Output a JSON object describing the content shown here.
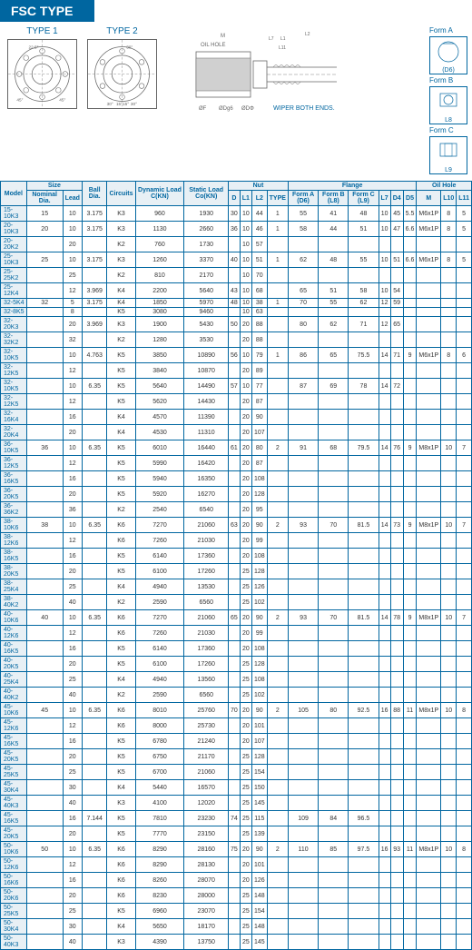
{
  "title": "FSC TYPE",
  "type1_label": "TYPE 1",
  "type2_label": "TYPE 2",
  "wiper_note": "WIPER BOTH ENDS.",
  "forms": [
    "Form A",
    "Form B",
    "Form C"
  ],
  "form_sublabels": [
    "(D6)",
    "L8",
    "L9"
  ],
  "diagram_labels": [
    "M",
    "OIL HOLE",
    "L7",
    "L1",
    "L11",
    "L2",
    "ØF",
    "ØDg6",
    "ØDΦ"
  ],
  "headers_top": [
    "Model",
    "Size",
    "Ball Dia.",
    "Circuits",
    "Dynamic Load C(KN)",
    "Static Load Co(KN)",
    "Nut",
    "Flange",
    "Oil Hole"
  ],
  "headers_size": [
    "Nominal Dia.",
    "Lead"
  ],
  "headers_nut": [
    "D",
    "L1",
    "L2",
    "TYPE"
  ],
  "headers_flange": [
    "Form A (D6)",
    "Form B (L8)",
    "Form C (L9)",
    "L7",
    "D4",
    "D5"
  ],
  "headers_oil": [
    "M",
    "L10",
    "L11"
  ],
  "rows": [
    {
      "model": "15-10K3",
      "nd": "15",
      "lead": "10",
      "ball": "3.175",
      "circ": "K3",
      "dyn": "960",
      "stat": "1930",
      "d": "30",
      "l1": "10",
      "l2": "44",
      "type": "1",
      "fa": "55",
      "fb": "41",
      "fc": "48",
      "l7": "10",
      "d4": "45",
      "d5": "5.5",
      "m": "M6x1P",
      "l10": "8",
      "l11": "5"
    },
    {
      "model": "20-10K3",
      "nd": "20",
      "lead": "10",
      "ball": "3.175",
      "circ": "K3",
      "dyn": "1130",
      "stat": "2660",
      "d": "36",
      "l1": "10",
      "l2": "46",
      "type": "1",
      "fa": "58",
      "fb": "44",
      "fc": "51",
      "l7": "10",
      "d4": "47",
      "d5": "6.6",
      "m": "M6x1P",
      "l10": "8",
      "l11": "5"
    },
    {
      "model": "20-20K2",
      "nd": "",
      "lead": "20",
      "ball": "",
      "circ": "K2",
      "dyn": "760",
      "stat": "1730",
      "d": "",
      "l1": "10",
      "l2": "57",
      "type": "",
      "fa": "",
      "fb": "",
      "fc": "",
      "l7": "",
      "d4": "",
      "d5": "",
      "m": "",
      "l10": "",
      "l11": ""
    },
    {
      "model": "25-10K3",
      "nd": "25",
      "lead": "10",
      "ball": "3.175",
      "circ": "K3",
      "dyn": "1260",
      "stat": "3370",
      "d": "40",
      "l1": "10",
      "l2": "51",
      "type": "1",
      "fa": "62",
      "fb": "48",
      "fc": "55",
      "l7": "10",
      "d4": "51",
      "d5": "6.6",
      "m": "M6x1P",
      "l10": "8",
      "l11": "5"
    },
    {
      "model": "25-25K2",
      "nd": "",
      "lead": "25",
      "ball": "",
      "circ": "K2",
      "dyn": "810",
      "stat": "2170",
      "d": "",
      "l1": "10",
      "l2": "70",
      "type": "",
      "fa": "",
      "fb": "",
      "fc": "",
      "l7": "",
      "d4": "",
      "d5": "",
      "m": "",
      "l10": "",
      "l11": ""
    },
    {
      "model": "25-12K4",
      "nd": "",
      "lead": "12",
      "ball": "3.969",
      "circ": "K4",
      "dyn": "2200",
      "stat": "5640",
      "d": "43",
      "l1": "10",
      "l2": "68",
      "type": "",
      "fa": "65",
      "fb": "51",
      "fc": "58",
      "l7": "10",
      "d4": "54",
      "d5": "",
      "m": "",
      "l10": "",
      "l11": ""
    },
    {
      "model": "32-5K4",
      "nd": "32",
      "lead": "5",
      "ball": "3.175",
      "circ": "K4",
      "dyn": "1850",
      "stat": "5970",
      "d": "48",
      "l1": "10",
      "l2": "38",
      "type": "1",
      "fa": "70",
      "fb": "55",
      "fc": "62",
      "l7": "12",
      "d4": "59",
      "d5": "",
      "m": "",
      "l10": "",
      "l11": ""
    },
    {
      "model": "32-8K5",
      "nd": "",
      "lead": "8",
      "ball": "",
      "circ": "K5",
      "dyn": "3080",
      "stat": "9460",
      "d": "",
      "l1": "10",
      "l2": "63",
      "type": "",
      "fa": "",
      "fb": "",
      "fc": "",
      "l7": "",
      "d4": "",
      "d5": "",
      "m": "",
      "l10": "",
      "l11": ""
    },
    {
      "model": "32-20K3",
      "nd": "",
      "lead": "20",
      "ball": "3.969",
      "circ": "K3",
      "dyn": "1900",
      "stat": "5430",
      "d": "50",
      "l1": "20",
      "l2": "88",
      "type": "",
      "fa": "80",
      "fb": "62",
      "fc": "71",
      "l7": "12",
      "d4": "65",
      "d5": "",
      "m": "",
      "l10": "",
      "l11": ""
    },
    {
      "model": "32-32K2",
      "nd": "",
      "lead": "32",
      "ball": "",
      "circ": "K2",
      "dyn": "1280",
      "stat": "3530",
      "d": "",
      "l1": "20",
      "l2": "88",
      "type": "",
      "fa": "",
      "fb": "",
      "fc": "",
      "l7": "",
      "d4": "",
      "d5": "",
      "m": "",
      "l10": "",
      "l11": ""
    },
    {
      "model": "32-10K5",
      "nd": "",
      "lead": "10",
      "ball": "4.763",
      "circ": "K5",
      "dyn": "3850",
      "stat": "10890",
      "d": "56",
      "l1": "10",
      "l2": "79",
      "type": "1",
      "fa": "86",
      "fb": "65",
      "fc": "75.5",
      "l7": "14",
      "d4": "71",
      "d5": "9",
      "m": "M6x1P",
      "l10": "8",
      "l11": "6"
    },
    {
      "model": "32-12K5",
      "nd": "",
      "lead": "12",
      "ball": "",
      "circ": "K5",
      "dyn": "3840",
      "stat": "10870",
      "d": "",
      "l1": "20",
      "l2": "89",
      "type": "",
      "fa": "",
      "fb": "",
      "fc": "",
      "l7": "",
      "d4": "",
      "d5": "",
      "m": "",
      "l10": "",
      "l11": ""
    },
    {
      "model": "32-10K5",
      "nd": "",
      "lead": "10",
      "ball": "6.35",
      "circ": "K5",
      "dyn": "5640",
      "stat": "14490",
      "d": "57",
      "l1": "10",
      "l2": "77",
      "type": "",
      "fa": "87",
      "fb": "69",
      "fc": "78",
      "l7": "14",
      "d4": "72",
      "d5": "",
      "m": "",
      "l10": "",
      "l11": ""
    },
    {
      "model": "32-12K5",
      "nd": "",
      "lead": "12",
      "ball": "",
      "circ": "K5",
      "dyn": "5620",
      "stat": "14430",
      "d": "",
      "l1": "20",
      "l2": "87",
      "type": "",
      "fa": "",
      "fb": "",
      "fc": "",
      "l7": "",
      "d4": "",
      "d5": "",
      "m": "",
      "l10": "",
      "l11": ""
    },
    {
      "model": "32-16K4",
      "nd": "",
      "lead": "16",
      "ball": "",
      "circ": "K4",
      "dyn": "4570",
      "stat": "11390",
      "d": "",
      "l1": "20",
      "l2": "90",
      "type": "",
      "fa": "",
      "fb": "",
      "fc": "",
      "l7": "",
      "d4": "",
      "d5": "",
      "m": "",
      "l10": "",
      "l11": ""
    },
    {
      "model": "32-20K4",
      "nd": "",
      "lead": "20",
      "ball": "",
      "circ": "K4",
      "dyn": "4530",
      "stat": "11310",
      "d": "",
      "l1": "20",
      "l2": "107",
      "type": "",
      "fa": "",
      "fb": "",
      "fc": "",
      "l7": "",
      "d4": "",
      "d5": "",
      "m": "",
      "l10": "",
      "l11": ""
    },
    {
      "model": "36-10K5",
      "nd": "36",
      "lead": "10",
      "ball": "6.35",
      "circ": "K5",
      "dyn": "6010",
      "stat": "16440",
      "d": "61",
      "l1": "20",
      "l2": "80",
      "type": "2",
      "fa": "91",
      "fb": "68",
      "fc": "79.5",
      "l7": "14",
      "d4": "76",
      "d5": "9",
      "m": "M8x1P",
      "l10": "10",
      "l11": "7"
    },
    {
      "model": "36-12K5",
      "nd": "",
      "lead": "12",
      "ball": "",
      "circ": "K5",
      "dyn": "5990",
      "stat": "16420",
      "d": "",
      "l1": "20",
      "l2": "87",
      "type": "",
      "fa": "",
      "fb": "",
      "fc": "",
      "l7": "",
      "d4": "",
      "d5": "",
      "m": "",
      "l10": "",
      "l11": ""
    },
    {
      "model": "36-16K5",
      "nd": "",
      "lead": "16",
      "ball": "",
      "circ": "K5",
      "dyn": "5940",
      "stat": "16350",
      "d": "",
      "l1": "20",
      "l2": "108",
      "type": "",
      "fa": "",
      "fb": "",
      "fc": "",
      "l7": "",
      "d4": "",
      "d5": "",
      "m": "",
      "l10": "",
      "l11": ""
    },
    {
      "model": "36-20K5",
      "nd": "",
      "lead": "20",
      "ball": "",
      "circ": "K5",
      "dyn": "5920",
      "stat": "16270",
      "d": "",
      "l1": "20",
      "l2": "128",
      "type": "",
      "fa": "",
      "fb": "",
      "fc": "",
      "l7": "",
      "d4": "",
      "d5": "",
      "m": "",
      "l10": "",
      "l11": ""
    },
    {
      "model": "36-36K2",
      "nd": "",
      "lead": "36",
      "ball": "",
      "circ": "K2",
      "dyn": "2540",
      "stat": "6540",
      "d": "",
      "l1": "20",
      "l2": "95",
      "type": "",
      "fa": "",
      "fb": "",
      "fc": "",
      "l7": "",
      "d4": "",
      "d5": "",
      "m": "",
      "l10": "",
      "l11": ""
    },
    {
      "model": "38-10K6",
      "nd": "38",
      "lead": "10",
      "ball": "6.35",
      "circ": "K6",
      "dyn": "7270",
      "stat": "21060",
      "d": "63",
      "l1": "20",
      "l2": "90",
      "type": "2",
      "fa": "93",
      "fb": "70",
      "fc": "81.5",
      "l7": "14",
      "d4": "73",
      "d5": "9",
      "m": "M8x1P",
      "l10": "10",
      "l11": "7"
    },
    {
      "model": "38-12K6",
      "nd": "",
      "lead": "12",
      "ball": "",
      "circ": "K6",
      "dyn": "7260",
      "stat": "21030",
      "d": "",
      "l1": "20",
      "l2": "99",
      "type": "",
      "fa": "",
      "fb": "",
      "fc": "",
      "l7": "",
      "d4": "",
      "d5": "",
      "m": "",
      "l10": "",
      "l11": ""
    },
    {
      "model": "38-16K5",
      "nd": "",
      "lead": "16",
      "ball": "",
      "circ": "K5",
      "dyn": "6140",
      "stat": "17360",
      "d": "",
      "l1": "20",
      "l2": "108",
      "type": "",
      "fa": "",
      "fb": "",
      "fc": "",
      "l7": "",
      "d4": "",
      "d5": "",
      "m": "",
      "l10": "",
      "l11": ""
    },
    {
      "model": "38-20K5",
      "nd": "",
      "lead": "20",
      "ball": "",
      "circ": "K5",
      "dyn": "6100",
      "stat": "17260",
      "d": "",
      "l1": "25",
      "l2": "128",
      "type": "",
      "fa": "",
      "fb": "",
      "fc": "",
      "l7": "",
      "d4": "",
      "d5": "",
      "m": "",
      "l10": "",
      "l11": ""
    },
    {
      "model": "38-25K4",
      "nd": "",
      "lead": "25",
      "ball": "",
      "circ": "K4",
      "dyn": "4940",
      "stat": "13530",
      "d": "",
      "l1": "25",
      "l2": "126",
      "type": "",
      "fa": "",
      "fb": "",
      "fc": "",
      "l7": "",
      "d4": "",
      "d5": "",
      "m": "",
      "l10": "",
      "l11": ""
    },
    {
      "model": "38-40K2",
      "nd": "",
      "lead": "40",
      "ball": "",
      "circ": "K2",
      "dyn": "2590",
      "stat": "6560",
      "d": "",
      "l1": "25",
      "l2": "102",
      "type": "",
      "fa": "",
      "fb": "",
      "fc": "",
      "l7": "",
      "d4": "",
      "d5": "",
      "m": "",
      "l10": "",
      "l11": ""
    },
    {
      "model": "40-10K6",
      "nd": "40",
      "lead": "10",
      "ball": "6.35",
      "circ": "K6",
      "dyn": "7270",
      "stat": "21060",
      "d": "65",
      "l1": "20",
      "l2": "90",
      "type": "2",
      "fa": "93",
      "fb": "70",
      "fc": "81.5",
      "l7": "14",
      "d4": "78",
      "d5": "9",
      "m": "M8x1P",
      "l10": "10",
      "l11": "7"
    },
    {
      "model": "40-12K6",
      "nd": "",
      "lead": "12",
      "ball": "",
      "circ": "K6",
      "dyn": "7260",
      "stat": "21030",
      "d": "",
      "l1": "20",
      "l2": "99",
      "type": "",
      "fa": "",
      "fb": "",
      "fc": "",
      "l7": "",
      "d4": "",
      "d5": "",
      "m": "",
      "l10": "",
      "l11": ""
    },
    {
      "model": "40-16K5",
      "nd": "",
      "lead": "16",
      "ball": "",
      "circ": "K5",
      "dyn": "6140",
      "stat": "17360",
      "d": "",
      "l1": "20",
      "l2": "108",
      "type": "",
      "fa": "",
      "fb": "",
      "fc": "",
      "l7": "",
      "d4": "",
      "d5": "",
      "m": "",
      "l10": "",
      "l11": ""
    },
    {
      "model": "40-20K5",
      "nd": "",
      "lead": "20",
      "ball": "",
      "circ": "K5",
      "dyn": "6100",
      "stat": "17260",
      "d": "",
      "l1": "25",
      "l2": "128",
      "type": "",
      "fa": "",
      "fb": "",
      "fc": "",
      "l7": "",
      "d4": "",
      "d5": "",
      "m": "",
      "l10": "",
      "l11": ""
    },
    {
      "model": "40-25K4",
      "nd": "",
      "lead": "25",
      "ball": "",
      "circ": "K4",
      "dyn": "4940",
      "stat": "13560",
      "d": "",
      "l1": "25",
      "l2": "108",
      "type": "",
      "fa": "",
      "fb": "",
      "fc": "",
      "l7": "",
      "d4": "",
      "d5": "",
      "m": "",
      "l10": "",
      "l11": ""
    },
    {
      "model": "40-40K2",
      "nd": "",
      "lead": "40",
      "ball": "",
      "circ": "K2",
      "dyn": "2590",
      "stat": "6560",
      "d": "",
      "l1": "25",
      "l2": "102",
      "type": "",
      "fa": "",
      "fb": "",
      "fc": "",
      "l7": "",
      "d4": "",
      "d5": "",
      "m": "",
      "l10": "",
      "l11": ""
    },
    {
      "model": "45-10K6",
      "nd": "45",
      "lead": "10",
      "ball": "6.35",
      "circ": "K6",
      "dyn": "8010",
      "stat": "25760",
      "d": "70",
      "l1": "20",
      "l2": "90",
      "type": "2",
      "fa": "105",
      "fb": "80",
      "fc": "92.5",
      "l7": "16",
      "d4": "88",
      "d5": "11",
      "m": "M8x1P",
      "l10": "10",
      "l11": "8"
    },
    {
      "model": "45-12K6",
      "nd": "",
      "lead": "12",
      "ball": "",
      "circ": "K6",
      "dyn": "8000",
      "stat": "25730",
      "d": "",
      "l1": "20",
      "l2": "101",
      "type": "",
      "fa": "",
      "fb": "",
      "fc": "",
      "l7": "",
      "d4": "",
      "d5": "",
      "m": "",
      "l10": "",
      "l11": ""
    },
    {
      "model": "45-16K5",
      "nd": "",
      "lead": "16",
      "ball": "",
      "circ": "K5",
      "dyn": "6780",
      "stat": "21240",
      "d": "",
      "l1": "20",
      "l2": "107",
      "type": "",
      "fa": "",
      "fb": "",
      "fc": "",
      "l7": "",
      "d4": "",
      "d5": "",
      "m": "",
      "l10": "",
      "l11": ""
    },
    {
      "model": "45-20K5",
      "nd": "",
      "lead": "20",
      "ball": "",
      "circ": "K5",
      "dyn": "6750",
      "stat": "21170",
      "d": "",
      "l1": "25",
      "l2": "128",
      "type": "",
      "fa": "",
      "fb": "",
      "fc": "",
      "l7": "",
      "d4": "",
      "d5": "",
      "m": "",
      "l10": "",
      "l11": ""
    },
    {
      "model": "45-25K5",
      "nd": "",
      "lead": "25",
      "ball": "",
      "circ": "K5",
      "dyn": "6700",
      "stat": "21060",
      "d": "",
      "l1": "25",
      "l2": "154",
      "type": "",
      "fa": "",
      "fb": "",
      "fc": "",
      "l7": "",
      "d4": "",
      "d5": "",
      "m": "",
      "l10": "",
      "l11": ""
    },
    {
      "model": "45-30K4",
      "nd": "",
      "lead": "30",
      "ball": "",
      "circ": "K4",
      "dyn": "5440",
      "stat": "16570",
      "d": "",
      "l1": "25",
      "l2": "150",
      "type": "",
      "fa": "",
      "fb": "",
      "fc": "",
      "l7": "",
      "d4": "",
      "d5": "",
      "m": "",
      "l10": "",
      "l11": ""
    },
    {
      "model": "45-40K3",
      "nd": "",
      "lead": "40",
      "ball": "",
      "circ": "K3",
      "dyn": "4100",
      "stat": "12020",
      "d": "",
      "l1": "25",
      "l2": "145",
      "type": "",
      "fa": "",
      "fb": "",
      "fc": "",
      "l7": "",
      "d4": "",
      "d5": "",
      "m": "",
      "l10": "",
      "l11": ""
    },
    {
      "model": "45-16K5",
      "nd": "",
      "lead": "16",
      "ball": "7.144",
      "circ": "K5",
      "dyn": "7810",
      "stat": "23230",
      "d": "74",
      "l1": "25",
      "l2": "115",
      "type": "",
      "fa": "109",
      "fb": "84",
      "fc": "96.5",
      "l7": "",
      "d4": "",
      "d5": "",
      "m": "",
      "l10": "",
      "l11": ""
    },
    {
      "model": "45-20K5",
      "nd": "",
      "lead": "20",
      "ball": "",
      "circ": "K5",
      "dyn": "7770",
      "stat": "23150",
      "d": "",
      "l1": "25",
      "l2": "139",
      "type": "",
      "fa": "",
      "fb": "",
      "fc": "",
      "l7": "",
      "d4": "",
      "d5": "",
      "m": "",
      "l10": "",
      "l11": ""
    },
    {
      "model": "50-10K6",
      "nd": "50",
      "lead": "10",
      "ball": "6.35",
      "circ": "K6",
      "dyn": "8290",
      "stat": "28160",
      "d": "75",
      "l1": "20",
      "l2": "90",
      "type": "2",
      "fa": "110",
      "fb": "85",
      "fc": "97.5",
      "l7": "16",
      "d4": "93",
      "d5": "11",
      "m": "M8x1P",
      "l10": "10",
      "l11": "8"
    },
    {
      "model": "50-12K6",
      "nd": "",
      "lead": "12",
      "ball": "",
      "circ": "K6",
      "dyn": "8290",
      "stat": "28130",
      "d": "",
      "l1": "20",
      "l2": "101",
      "type": "",
      "fa": "",
      "fb": "",
      "fc": "",
      "l7": "",
      "d4": "",
      "d5": "",
      "m": "",
      "l10": "",
      "l11": ""
    },
    {
      "model": "50-16K6",
      "nd": "",
      "lead": "16",
      "ball": "",
      "circ": "K6",
      "dyn": "8260",
      "stat": "28070",
      "d": "",
      "l1": "20",
      "l2": "126",
      "type": "",
      "fa": "",
      "fb": "",
      "fc": "",
      "l7": "",
      "d4": "",
      "d5": "",
      "m": "",
      "l10": "",
      "l11": ""
    },
    {
      "model": "50-20K6",
      "nd": "",
      "lead": "20",
      "ball": "",
      "circ": "K6",
      "dyn": "8230",
      "stat": "28000",
      "d": "",
      "l1": "25",
      "l2": "148",
      "type": "",
      "fa": "",
      "fb": "",
      "fc": "",
      "l7": "",
      "d4": "",
      "d5": "",
      "m": "",
      "l10": "",
      "l11": ""
    },
    {
      "model": "50-25K5",
      "nd": "",
      "lead": "25",
      "ball": "",
      "circ": "K5",
      "dyn": "6960",
      "stat": "23070",
      "d": "",
      "l1": "25",
      "l2": "154",
      "type": "",
      "fa": "",
      "fb": "",
      "fc": "",
      "l7": "",
      "d4": "",
      "d5": "",
      "m": "",
      "l10": "",
      "l11": ""
    },
    {
      "model": "50-30K4",
      "nd": "",
      "lead": "30",
      "ball": "",
      "circ": "K4",
      "dyn": "5650",
      "stat": "18170",
      "d": "",
      "l1": "25",
      "l2": "148",
      "type": "",
      "fa": "",
      "fb": "",
      "fc": "",
      "l7": "",
      "d4": "",
      "d5": "",
      "m": "",
      "l10": "",
      "l11": ""
    },
    {
      "model": "50-40K3",
      "nd": "",
      "lead": "40",
      "ball": "",
      "circ": "K3",
      "dyn": "4390",
      "stat": "13750",
      "d": "",
      "l1": "25",
      "l2": "145",
      "type": "",
      "fa": "",
      "fb": "",
      "fc": "",
      "l7": "",
      "d4": "",
      "d5": "",
      "m": "",
      "l10": "",
      "l11": ""
    }
  ]
}
